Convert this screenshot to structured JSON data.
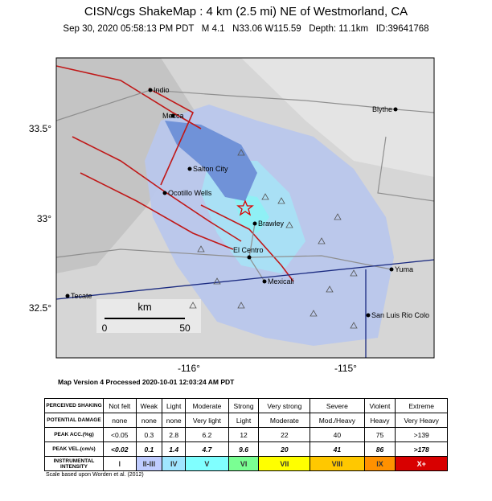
{
  "header": {
    "title": "CISN/cgs ShakeMap : 4 km (2.5 mi) NE of Westmorland, CA",
    "subtitle": "Sep 30, 2020 05:58:13 PM PDT   M 4.1   N33.06 W115.59   Depth: 11.1km   ID:39641768"
  },
  "map": {
    "lat_labels": [
      "33.5°",
      "33°",
      "32.5°"
    ],
    "lon_labels": [
      "-116°",
      "-115°"
    ],
    "places": [
      "Indio",
      "Mecca",
      "Blythe",
      "Salton City",
      "Ocotillo Wells",
      "Brawley",
      "El Centro",
      "Mexicali",
      "Yuma",
      "Tecate",
      "San Luis Rio Colo"
    ],
    "scale": {
      "unit": "km",
      "labels": [
        "0",
        "50"
      ]
    }
  },
  "version": "Map Version 4 Processed 2020-10-01 12:03:24 AM PDT",
  "legend": {
    "rows": [
      {
        "label": "PERCEIVED SHAKING",
        "cells": [
          "Not felt",
          "Weak",
          "Light",
          "Moderate",
          "Strong",
          "Very strong",
          "Severe",
          "Violent",
          "Extreme"
        ]
      },
      {
        "label": "POTENTIAL DAMAGE",
        "cells": [
          "none",
          "none",
          "none",
          "Very light",
          "Light",
          "Moderate",
          "Mod./Heavy",
          "Heavy",
          "Very Heavy"
        ]
      },
      {
        "label": "PEAK ACC.(%g)",
        "cells": [
          "<0.05",
          "0.3",
          "2.8",
          "6.2",
          "12",
          "22",
          "40",
          "75",
          ">139"
        ]
      },
      {
        "label": "PEAK VEL.(cm/s)",
        "cells": [
          "<0.02",
          "0.1",
          "1.4",
          "4.7",
          "9.6",
          "20",
          "41",
          "86",
          ">178"
        ]
      },
      {
        "label": "INSTRUMENTAL INTENSITY",
        "cells": [
          "I",
          "II-III",
          "IV",
          "V",
          "VI",
          "VII",
          "VIII",
          "IX",
          "X+"
        ]
      }
    ],
    "intensity_colors": [
      "#ffffff",
      "#bfccff",
      "#a0e6ff",
      "#80ffff",
      "#7aff93",
      "#ffff00",
      "#ffc800",
      "#ff9100",
      "#d80000"
    ]
  },
  "footnote": "Scale based upon Worden et al. (2012)"
}
